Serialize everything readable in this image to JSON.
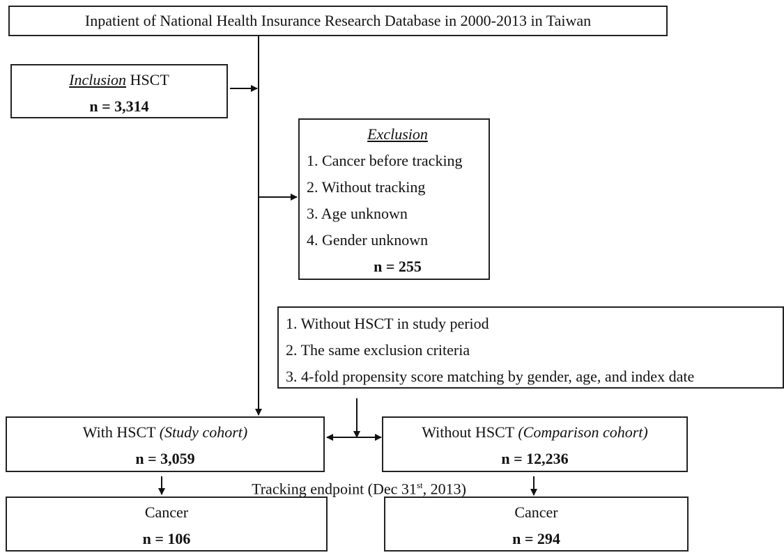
{
  "header": {
    "title": "Inpatient of National Health Insurance Research Database in 2000-2013 in Taiwan"
  },
  "inclusion": {
    "heading": "Inclusion",
    "label": "HSCT",
    "count": "n = 3,314"
  },
  "exclusion": {
    "heading": "Exclusion",
    "criteria": [
      "1. Cancer before tracking",
      "2. Without tracking",
      "3. Age unknown",
      "4. Gender unknown"
    ],
    "count": "n = 255"
  },
  "matching": {
    "criteria": [
      "1. Without HSCT in study period",
      "2. The same exclusion criteria",
      "3. 4-fold propensity score matching by gender, age, and index date"
    ]
  },
  "study_cohort": {
    "label": "With HSCT",
    "qualifier": "(Study cohort)",
    "count": "n = 3,059"
  },
  "comparison_cohort": {
    "label": "Without HSCT",
    "qualifier": "(Comparison cohort)",
    "count": "n = 12,236"
  },
  "tracking": {
    "text": "Tracking endpoint (Dec 31",
    "superscript": "st",
    "suffix": ", 2013)"
  },
  "outcomes": [
    {
      "label": "Cancer",
      "count": "n = 106"
    },
    {
      "label": "Cancer",
      "count": "n = 294"
    }
  ]
}
